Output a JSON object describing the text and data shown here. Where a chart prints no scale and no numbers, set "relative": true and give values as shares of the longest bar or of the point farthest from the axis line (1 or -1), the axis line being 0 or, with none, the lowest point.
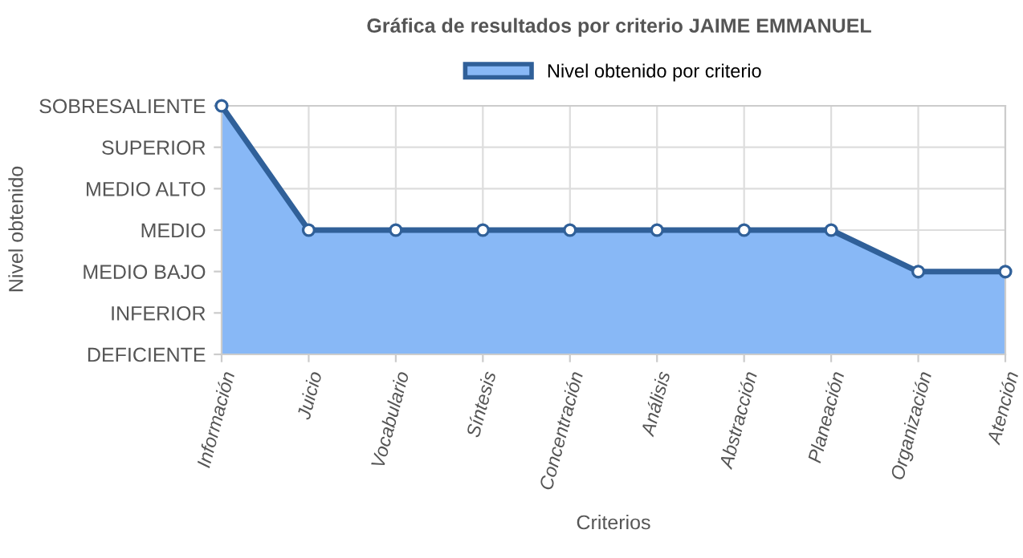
{
  "chart_data": {
    "type": "area",
    "title": "Gráfica de resultados por criterio JAIME EMMANUEL",
    "xlabel": "Criterios",
    "categories": [
      "Información",
      "Juicio",
      "Vocabulario",
      "Síntesis",
      "Concentración",
      "Análisis",
      "Abstracción",
      "Planeación",
      "Organización",
      "Atención"
    ],
    "series": [
      {
        "name": "Nivel obtenido por criterio",
        "color": "#88b8f6",
        "values": [
          1,
          0.5,
          0.5,
          0.5,
          0.5,
          0.5,
          0.5,
          0.5,
          0.333,
          0.333
        ]
      }
    ],
    "relative": true,
    "annotations": [
      "DEFICIENTE",
      "INFERIOR",
      "MEDIO BAJO",
      "MEDIO",
      "MEDIO ALTO",
      "SUPERIOR",
      "SOBRESALIENTE",
      "Nivel obtenido"
    ],
    "grid": true,
    "legend": "top",
    "marker": "circle",
    "line_style": "solid"
  }
}
